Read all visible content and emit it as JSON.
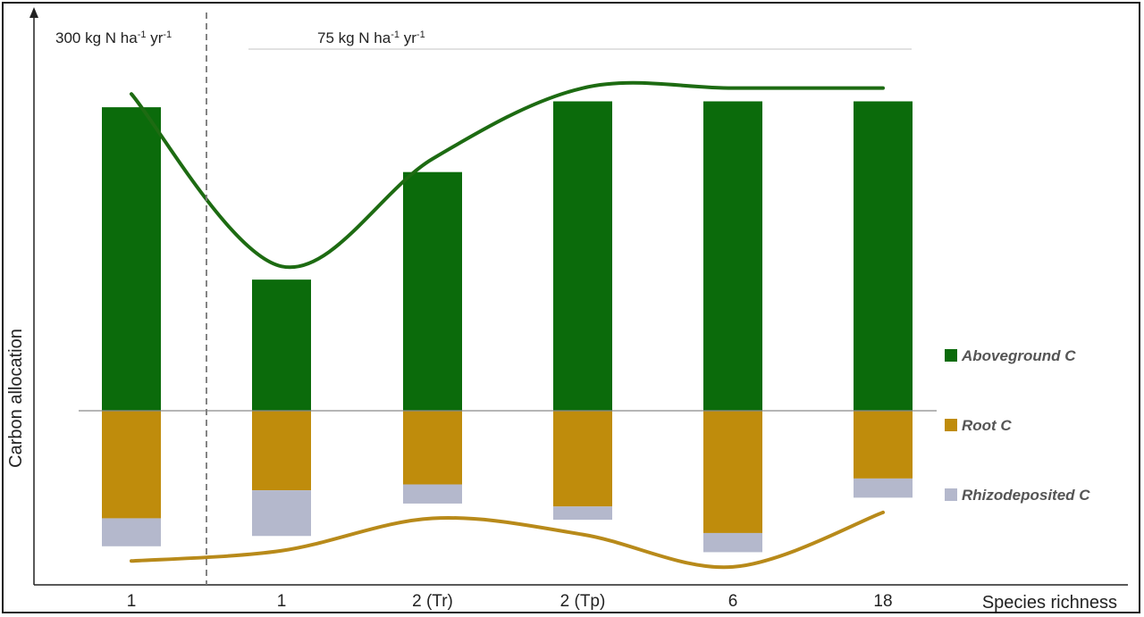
{
  "chart_data": {
    "type": "bar",
    "xlabel": "Species richness",
    "ylabel": "Carbon allocation",
    "categories": [
      "1",
      "1",
      "2 (Tr)",
      "2 (Tp)",
      "6",
      "18"
    ],
    "nitrogen_labels": {
      "high": {
        "prefix": "300 kg N ha",
        "sup1": "-1",
        "mid": " yr",
        "sup2": "-1"
      },
      "low": {
        "prefix": "75 kg N ha",
        "sup1": "-1",
        "mid": " yr",
        "sup2": "-1"
      }
    },
    "series": [
      {
        "name": "Aboveground C",
        "color": "#0b6b0b",
        "values": [
          10.3,
          4.45,
          8.1,
          10.5,
          10.5,
          10.5
        ]
      },
      {
        "name": "Root C",
        "color": "#bf8c0c",
        "values": [
          -3.65,
          -2.7,
          -2.5,
          -3.25,
          -4.15,
          -2.3
        ]
      },
      {
        "name": "Rhizodeposited C",
        "color": "#b4b8cc",
        "values": [
          -0.95,
          -1.55,
          -0.65,
          -0.45,
          -0.65,
          -0.65
        ]
      }
    ],
    "trend_lines": [
      {
        "series": "Aboveground C",
        "color": "#1d6b12"
      },
      {
        "series": "Root C",
        "color": "#b88a1a"
      }
    ],
    "legend_position": "right",
    "ylim": [
      -6,
      12.5
    ]
  }
}
